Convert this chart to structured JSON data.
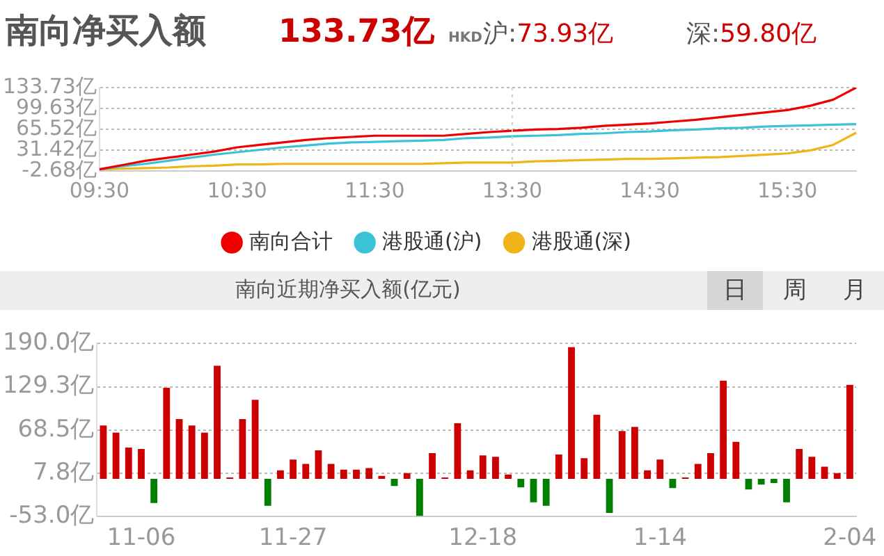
{
  "chart_data": [
    {
      "type": "line",
      "title": "南向净买入额",
      "annotations": [
        "133.73亿",
        "HKD",
        "沪:73.93亿",
        "深:59.80亿"
      ],
      "categories": [
        "09:30",
        null,
        null,
        null,
        null,
        null,
        "10:30",
        null,
        null,
        null,
        null,
        null,
        "11:30",
        null,
        null,
        null,
        null,
        null,
        "13:30",
        null,
        null,
        null,
        null,
        null,
        "14:30",
        null,
        null,
        null,
        null,
        null,
        "15:30",
        null,
        null,
        null
      ],
      "series": [
        {
          "name": "南向合计",
          "color": "#ee0000",
          "values": [
            0,
            7,
            14,
            19,
            24,
            29,
            36,
            40,
            44,
            48,
            51,
            53,
            55,
            55,
            55,
            55,
            58,
            61,
            63,
            65,
            66,
            68,
            71,
            73,
            75,
            78,
            81,
            85,
            89,
            93,
            97,
            104,
            114,
            133.73
          ]
        },
        {
          "name": "港股通(沪)",
          "color": "#3cc2d6",
          "values": [
            0,
            5,
            9,
            14,
            19,
            24,
            28,
            32,
            36,
            39,
            42,
            44,
            45,
            46,
            47,
            48,
            51,
            52,
            54,
            55,
            56,
            58,
            59,
            61,
            62,
            64,
            65,
            67,
            68,
            70,
            71,
            72,
            73,
            73.93
          ]
        },
        {
          "name": "港股通(深)",
          "color": "#f0b418",
          "values": [
            0,
            1,
            2,
            3,
            5,
            6,
            8,
            8,
            9,
            9,
            9,
            9,
            9,
            9,
            9,
            10,
            11,
            11,
            11,
            13,
            14,
            15,
            16,
            17,
            17,
            18,
            19,
            20,
            22,
            24,
            26,
            31,
            40,
            59.8
          ]
        }
      ],
      "ylim": [
        -2.68,
        133.73
      ],
      "yticks": [
        {
          "value": -2.68,
          "label": "-2.68亿"
        },
        {
          "value": 31.42,
          "label": "31.42亿"
        },
        {
          "value": 65.52,
          "label": "65.52亿"
        },
        {
          "value": 99.63,
          "label": "99.63亿"
        },
        {
          "value": 133.73,
          "label": "133.73亿"
        }
      ],
      "ref_lines": [
        {
          "axis": "x",
          "value": "13:30",
          "color": "#cccccc",
          "line_style": "dotted"
        }
      ],
      "grid": "y",
      "legend": "bottom",
      "marker": "none",
      "line_style": "solid"
    },
    {
      "type": "bar",
      "title": "南向近期净买入额(亿元)",
      "annotations": [
        "日",
        "周",
        "月"
      ],
      "categories": [
        null,
        null,
        null,
        "11-06",
        null,
        null,
        null,
        null,
        null,
        null,
        null,
        null,
        null,
        null,
        null,
        "11-27",
        null,
        null,
        null,
        null,
        null,
        null,
        null,
        null,
        null,
        null,
        null,
        null,
        null,
        null,
        "12-18",
        null,
        null,
        null,
        null,
        null,
        null,
        null,
        null,
        null,
        null,
        null,
        null,
        null,
        "1-14",
        null,
        null,
        null,
        null,
        null,
        null,
        null,
        null,
        null,
        null,
        null,
        null,
        null,
        null,
        "2-04"
      ],
      "values": [
        75,
        65,
        44,
        42,
        -34,
        128,
        84,
        75,
        65,
        159,
        2,
        84,
        111,
        -38,
        12,
        27,
        21,
        40,
        21,
        13,
        13,
        15,
        4,
        -10,
        8,
        -52,
        36,
        2,
        78,
        12,
        33,
        31,
        6,
        -12,
        -33,
        -38,
        34,
        185,
        29,
        90,
        -48,
        67,
        73,
        12,
        27,
        -13,
        2,
        21,
        36,
        138,
        52,
        -15,
        -8,
        -6,
        -33,
        42,
        31,
        17,
        8,
        132
      ],
      "colors": [
        "#cc0000",
        "#cc0000",
        "#cc0000",
        "#cc0000",
        "#007f00",
        "#cc0000",
        "#cc0000",
        "#cc0000",
        "#cc0000",
        "#cc0000",
        "#cc0000",
        "#cc0000",
        "#cc0000",
        "#007f00",
        "#cc0000",
        "#cc0000",
        "#cc0000",
        "#cc0000",
        "#cc0000",
        "#cc0000",
        "#cc0000",
        "#cc0000",
        "#cc0000",
        "#007f00",
        "#cc0000",
        "#007f00",
        "#cc0000",
        "#cc0000",
        "#cc0000",
        "#cc0000",
        "#cc0000",
        "#cc0000",
        "#cc0000",
        "#007f00",
        "#007f00",
        "#007f00",
        "#cc0000",
        "#cc0000",
        "#cc0000",
        "#cc0000",
        "#007f00",
        "#cc0000",
        "#cc0000",
        "#cc0000",
        "#cc0000",
        "#007f00",
        "#cc0000",
        "#cc0000",
        "#cc0000",
        "#cc0000",
        "#cc0000",
        "#007f00",
        "#007f00",
        "#007f00",
        "#007f00",
        "#cc0000",
        "#cc0000",
        "#cc0000",
        "#cc0000",
        "#cc0000"
      ],
      "ylim": [
        -53,
        190
      ],
      "yticks": [
        {
          "value": -53,
          "label": "-53.0亿"
        },
        {
          "value": 7.8,
          "label": "7.8亿"
        },
        {
          "value": 68.5,
          "label": "68.5亿"
        },
        {
          "value": 129.3,
          "label": "129.3亿"
        },
        {
          "value": 190,
          "label": "190.0亿"
        }
      ],
      "grid": "y",
      "legend": false
    }
  ]
}
